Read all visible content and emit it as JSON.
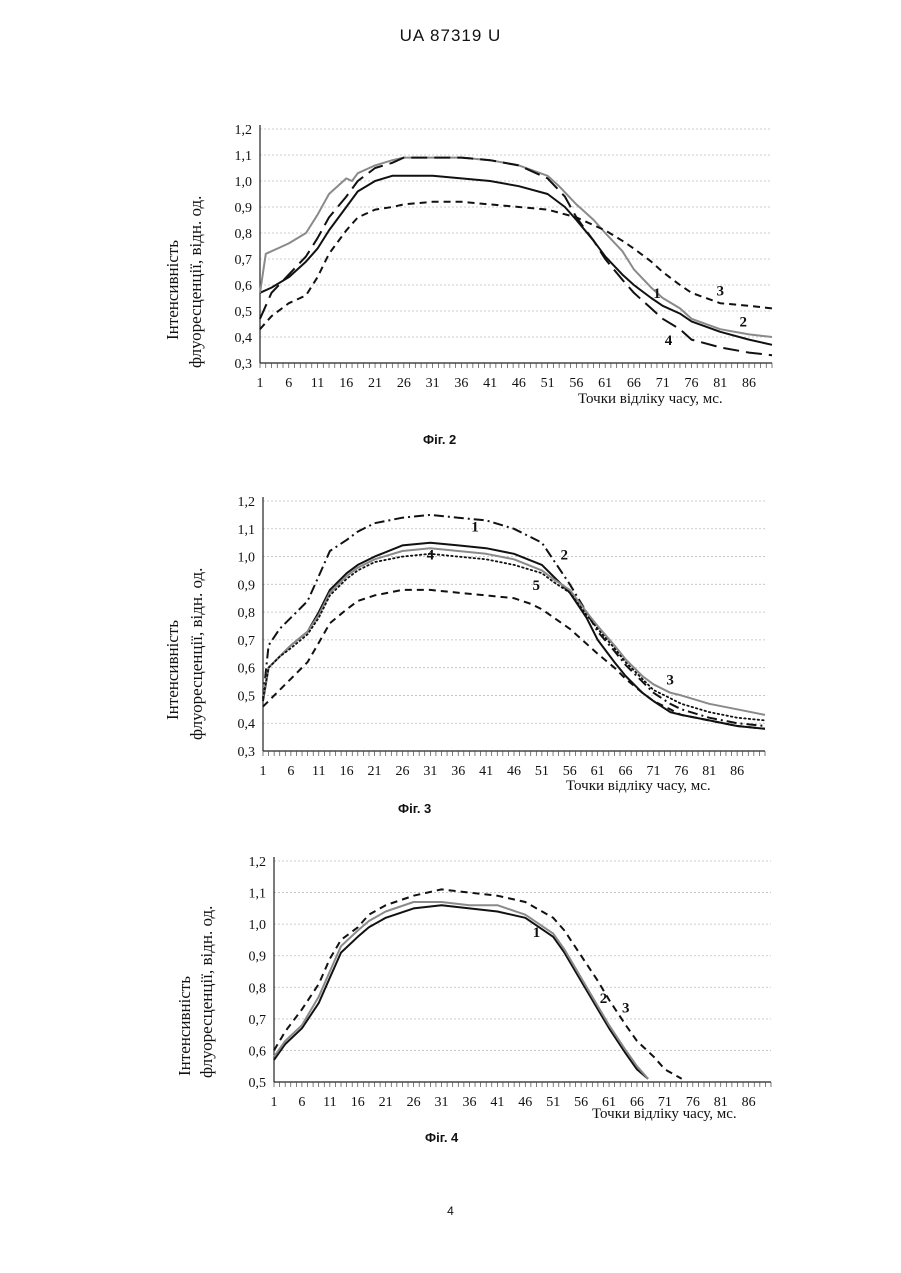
{
  "header": {
    "title": "UA 87319 U"
  },
  "footer": {
    "page_number": "4"
  },
  "chart_data": [
    {
      "type": "line",
      "caption": "Фіг. 2",
      "ylabel_line1": "Інтенсивність",
      "ylabel_line2": "флуоресценції, відн. од.",
      "xlabel": "Точки відліку часу, мс.",
      "ylim": [
        0.3,
        1.2
      ],
      "yticks": [
        "0,3",
        "0,4",
        "0,5",
        "0,6",
        "0,7",
        "0,8",
        "0,9",
        "1,0",
        "1,1",
        "1,2"
      ],
      "xticks": [
        "1",
        "6",
        "11",
        "16",
        "21",
        "26",
        "31",
        "36",
        "41",
        "46",
        "51",
        "56",
        "61",
        "66",
        "71",
        "76",
        "81",
        "86"
      ],
      "xlim": [
        1,
        90
      ],
      "grid": true,
      "series": [
        {
          "name": "1",
          "style": "solid",
          "color": "#111111",
          "x": [
            1,
            3,
            6,
            9,
            11,
            13,
            16,
            18,
            21,
            24,
            26,
            31,
            36,
            41,
            46,
            51,
            54,
            56,
            59,
            61,
            64,
            66,
            69,
            71,
            74,
            76,
            81,
            86,
            90
          ],
          "y": [
            0.57,
            0.59,
            0.63,
            0.69,
            0.74,
            0.81,
            0.9,
            0.96,
            1.0,
            1.02,
            1.02,
            1.02,
            1.01,
            1.0,
            0.98,
            0.95,
            0.9,
            0.85,
            0.77,
            0.71,
            0.64,
            0.6,
            0.55,
            0.52,
            0.49,
            0.46,
            0.42,
            0.39,
            0.37
          ]
        },
        {
          "name": "2",
          "style": "solid",
          "color": "#8a8a8a",
          "x": [
            1,
            2,
            4,
            6,
            9,
            11,
            13,
            16,
            17,
            18,
            21,
            24,
            26,
            31,
            36,
            41,
            46,
            51,
            53,
            56,
            59,
            61,
            64,
            66,
            69,
            71,
            74,
            76,
            81,
            86,
            90
          ],
          "y": [
            0.57,
            0.72,
            0.74,
            0.76,
            0.8,
            0.87,
            0.95,
            1.01,
            1.0,
            1.03,
            1.06,
            1.08,
            1.09,
            1.09,
            1.09,
            1.08,
            1.06,
            1.02,
            0.98,
            0.91,
            0.85,
            0.8,
            0.73,
            0.66,
            0.59,
            0.55,
            0.51,
            0.47,
            0.43,
            0.41,
            0.4
          ]
        },
        {
          "name": "3",
          "style": "dashed",
          "color": "#111111",
          "x": [
            1,
            3,
            6,
            9,
            11,
            13,
            16,
            18,
            21,
            24,
            26,
            31,
            36,
            41,
            46,
            51,
            56,
            61,
            64,
            66,
            69,
            71,
            74,
            76,
            81,
            86,
            90
          ],
          "y": [
            0.43,
            0.48,
            0.53,
            0.56,
            0.63,
            0.72,
            0.81,
            0.86,
            0.89,
            0.9,
            0.91,
            0.92,
            0.92,
            0.91,
            0.9,
            0.89,
            0.86,
            0.81,
            0.77,
            0.74,
            0.69,
            0.65,
            0.6,
            0.57,
            0.53,
            0.52,
            0.51
          ]
        },
        {
          "name": "4",
          "style": "longdash",
          "color": "#111111",
          "x": [
            1,
            3,
            6,
            9,
            11,
            13,
            16,
            18,
            21,
            24,
            26,
            31,
            36,
            41,
            46,
            51,
            54,
            56,
            59,
            61,
            64,
            66,
            69,
            71,
            74,
            76,
            81,
            86,
            90
          ],
          "y": [
            0.47,
            0.57,
            0.64,
            0.71,
            0.78,
            0.86,
            0.94,
            1.0,
            1.05,
            1.07,
            1.09,
            1.09,
            1.09,
            1.08,
            1.06,
            1.01,
            0.94,
            0.86,
            0.77,
            0.7,
            0.62,
            0.57,
            0.51,
            0.47,
            0.43,
            0.39,
            0.36,
            0.34,
            0.33
          ]
        }
      ],
      "annotations": [
        {
          "text": "1",
          "x": 70,
          "y": 0.55
        },
        {
          "text": "2",
          "x": 85,
          "y": 0.44
        },
        {
          "text": "3",
          "x": 81,
          "y": 0.56
        },
        {
          "text": "4",
          "x": 72,
          "y": 0.37
        }
      ]
    },
    {
      "type": "line",
      "caption": "Фіг. 3",
      "ylabel_line1": "Інтенсивність",
      "ylabel_line2": "флуоресценції, відн. од.",
      "xlabel": "Точки відліку часу, мс.",
      "ylim": [
        0.3,
        1.2
      ],
      "yticks": [
        "0,3",
        "0,4",
        "0,5",
        "0,6",
        "0,7",
        "0,8",
        "0,9",
        "1,0",
        "1,1",
        "1,2"
      ],
      "xticks": [
        "1",
        "6",
        "11",
        "16",
        "21",
        "26",
        "31",
        "36",
        "41",
        "46",
        "51",
        "56",
        "61",
        "66",
        "71",
        "76",
        "81",
        "86"
      ],
      "xlim": [
        1,
        91
      ],
      "grid": true,
      "series": [
        {
          "name": "1",
          "style": "solid",
          "color": "#111111",
          "x": [
            1,
            2,
            4,
            6,
            9,
            11,
            13,
            16,
            18,
            21,
            26,
            31,
            36,
            41,
            46,
            51,
            53,
            56,
            59,
            61,
            64,
            66,
            69,
            71,
            74,
            76,
            81,
            86,
            91
          ],
          "y": [
            0.48,
            0.6,
            0.64,
            0.68,
            0.73,
            0.8,
            0.88,
            0.94,
            0.97,
            1.0,
            1.04,
            1.05,
            1.04,
            1.03,
            1.01,
            0.97,
            0.93,
            0.87,
            0.78,
            0.7,
            0.62,
            0.57,
            0.51,
            0.48,
            0.44,
            0.43,
            0.41,
            0.39,
            0.38
          ]
        },
        {
          "name": "2",
          "style": "dashdot",
          "color": "#111111",
          "x": [
            1,
            2,
            4,
            6,
            9,
            11,
            13,
            16,
            18,
            21,
            26,
            31,
            36,
            41,
            46,
            51,
            53,
            56,
            59,
            61,
            64,
            66,
            69,
            71,
            74,
            76,
            81,
            86,
            91
          ],
          "y": [
            0.49,
            0.68,
            0.74,
            0.78,
            0.84,
            0.93,
            1.02,
            1.06,
            1.09,
            1.12,
            1.14,
            1.15,
            1.14,
            1.13,
            1.1,
            1.05,
            0.99,
            0.9,
            0.8,
            0.73,
            0.66,
            0.61,
            0.55,
            0.51,
            0.47,
            0.45,
            0.42,
            0.4,
            0.39
          ]
        },
        {
          "name": "3",
          "style": "solid",
          "color": "#8a8a8a",
          "x": [
            1,
            2,
            4,
            6,
            9,
            11,
            13,
            16,
            18,
            21,
            26,
            31,
            36,
            41,
            46,
            51,
            53,
            56,
            59,
            61,
            64,
            66,
            69,
            71,
            74,
            76,
            81,
            86,
            91
          ],
          "y": [
            0.49,
            0.6,
            0.64,
            0.68,
            0.73,
            0.79,
            0.87,
            0.93,
            0.96,
            0.99,
            1.02,
            1.03,
            1.02,
            1.01,
            0.99,
            0.95,
            0.92,
            0.88,
            0.8,
            0.75,
            0.68,
            0.63,
            0.57,
            0.54,
            0.51,
            0.5,
            0.47,
            0.45,
            0.43
          ]
        },
        {
          "name": "4",
          "style": "dotted",
          "color": "#111111",
          "x": [
            1,
            2,
            4,
            6,
            9,
            11,
            13,
            16,
            18,
            21,
            26,
            31,
            36,
            41,
            46,
            51,
            53,
            56,
            59,
            61,
            64,
            66,
            69,
            71,
            74,
            76,
            81,
            86,
            91
          ],
          "y": [
            0.49,
            0.6,
            0.64,
            0.67,
            0.72,
            0.78,
            0.86,
            0.92,
            0.95,
            0.98,
            1.0,
            1.01,
            1.0,
            0.99,
            0.97,
            0.94,
            0.91,
            0.87,
            0.79,
            0.74,
            0.67,
            0.62,
            0.56,
            0.52,
            0.49,
            0.47,
            0.44,
            0.42,
            0.41
          ]
        },
        {
          "name": "5",
          "style": "dashed",
          "color": "#111111",
          "x": [
            1,
            3,
            6,
            9,
            11,
            13,
            16,
            18,
            21,
            26,
            31,
            36,
            41,
            46,
            49,
            51,
            56,
            61,
            64,
            66,
            69,
            71,
            74,
            76,
            81,
            86,
            91
          ],
          "y": [
            0.46,
            0.5,
            0.56,
            0.62,
            0.69,
            0.76,
            0.81,
            0.84,
            0.86,
            0.88,
            0.88,
            0.87,
            0.86,
            0.85,
            0.83,
            0.81,
            0.74,
            0.65,
            0.6,
            0.56,
            0.51,
            0.48,
            0.45,
            0.43,
            0.41,
            0.39,
            0.38
          ]
        }
      ],
      "annotations": [
        {
          "text": "1",
          "x": 39,
          "y": 1.09
        },
        {
          "text": "2",
          "x": 55,
          "y": 0.99
        },
        {
          "text": "3",
          "x": 74,
          "y": 0.54
        },
        {
          "text": "4",
          "x": 31,
          "y": 0.99
        },
        {
          "text": "5",
          "x": 50,
          "y": 0.88
        }
      ]
    },
    {
      "type": "line",
      "caption": "Фіг. 4",
      "ylabel_line1": "Інтенсивність",
      "ylabel_line2": "флуоресценції, відн. од.",
      "xlabel": "Точки відліку часу, мс.",
      "ylim": [
        0.5,
        1.2
      ],
      "yticks": [
        "0,5",
        "0,6",
        "0,7",
        "0,8",
        "0,9",
        "1,0",
        "1,1",
        "1,2"
      ],
      "xticks": [
        "1",
        "6",
        "11",
        "16",
        "21",
        "26",
        "31",
        "36",
        "41",
        "46",
        "51",
        "56",
        "61",
        "66",
        "71",
        "76",
        "81",
        "86"
      ],
      "xlim": [
        1,
        90
      ],
      "grid": true,
      "series": [
        {
          "name": "1",
          "style": "solid",
          "color": "#111111",
          "x": [
            1,
            3,
            6,
            9,
            11,
            13,
            16,
            18,
            21,
            26,
            31,
            36,
            41,
            46,
            51,
            53,
            56,
            59,
            61,
            64,
            66,
            68
          ],
          "y": [
            0.57,
            0.62,
            0.67,
            0.75,
            0.83,
            0.91,
            0.96,
            0.99,
            1.02,
            1.05,
            1.06,
            1.05,
            1.04,
            1.02,
            0.96,
            0.91,
            0.82,
            0.73,
            0.67,
            0.59,
            0.54,
            0.51
          ]
        },
        {
          "name": "2",
          "style": "solid",
          "color": "#8a8a8a",
          "x": [
            1,
            3,
            6,
            9,
            11,
            13,
            16,
            18,
            21,
            26,
            31,
            36,
            41,
            46,
            51,
            53,
            56,
            59,
            61,
            64,
            66,
            68
          ],
          "y": [
            0.58,
            0.63,
            0.68,
            0.77,
            0.85,
            0.93,
            0.98,
            1.01,
            1.04,
            1.07,
            1.07,
            1.06,
            1.06,
            1.03,
            0.97,
            0.92,
            0.83,
            0.74,
            0.68,
            0.6,
            0.55,
            0.51
          ]
        },
        {
          "name": "3",
          "style": "dashed",
          "color": "#111111",
          "x": [
            1,
            3,
            6,
            9,
            11,
            13,
            16,
            18,
            21,
            26,
            31,
            36,
            41,
            46,
            51,
            53,
            56,
            59,
            61,
            64,
            66,
            69,
            71,
            74
          ],
          "y": [
            0.6,
            0.66,
            0.73,
            0.81,
            0.89,
            0.95,
            0.99,
            1.03,
            1.06,
            1.09,
            1.11,
            1.1,
            1.09,
            1.07,
            1.02,
            0.98,
            0.9,
            0.82,
            0.76,
            0.68,
            0.63,
            0.58,
            0.54,
            0.51
          ]
        }
      ],
      "annotations": [
        {
          "text": "1",
          "x": 48,
          "y": 0.96
        },
        {
          "text": "2",
          "x": 60,
          "y": 0.75
        },
        {
          "text": "3",
          "x": 64,
          "y": 0.72
        }
      ]
    }
  ]
}
